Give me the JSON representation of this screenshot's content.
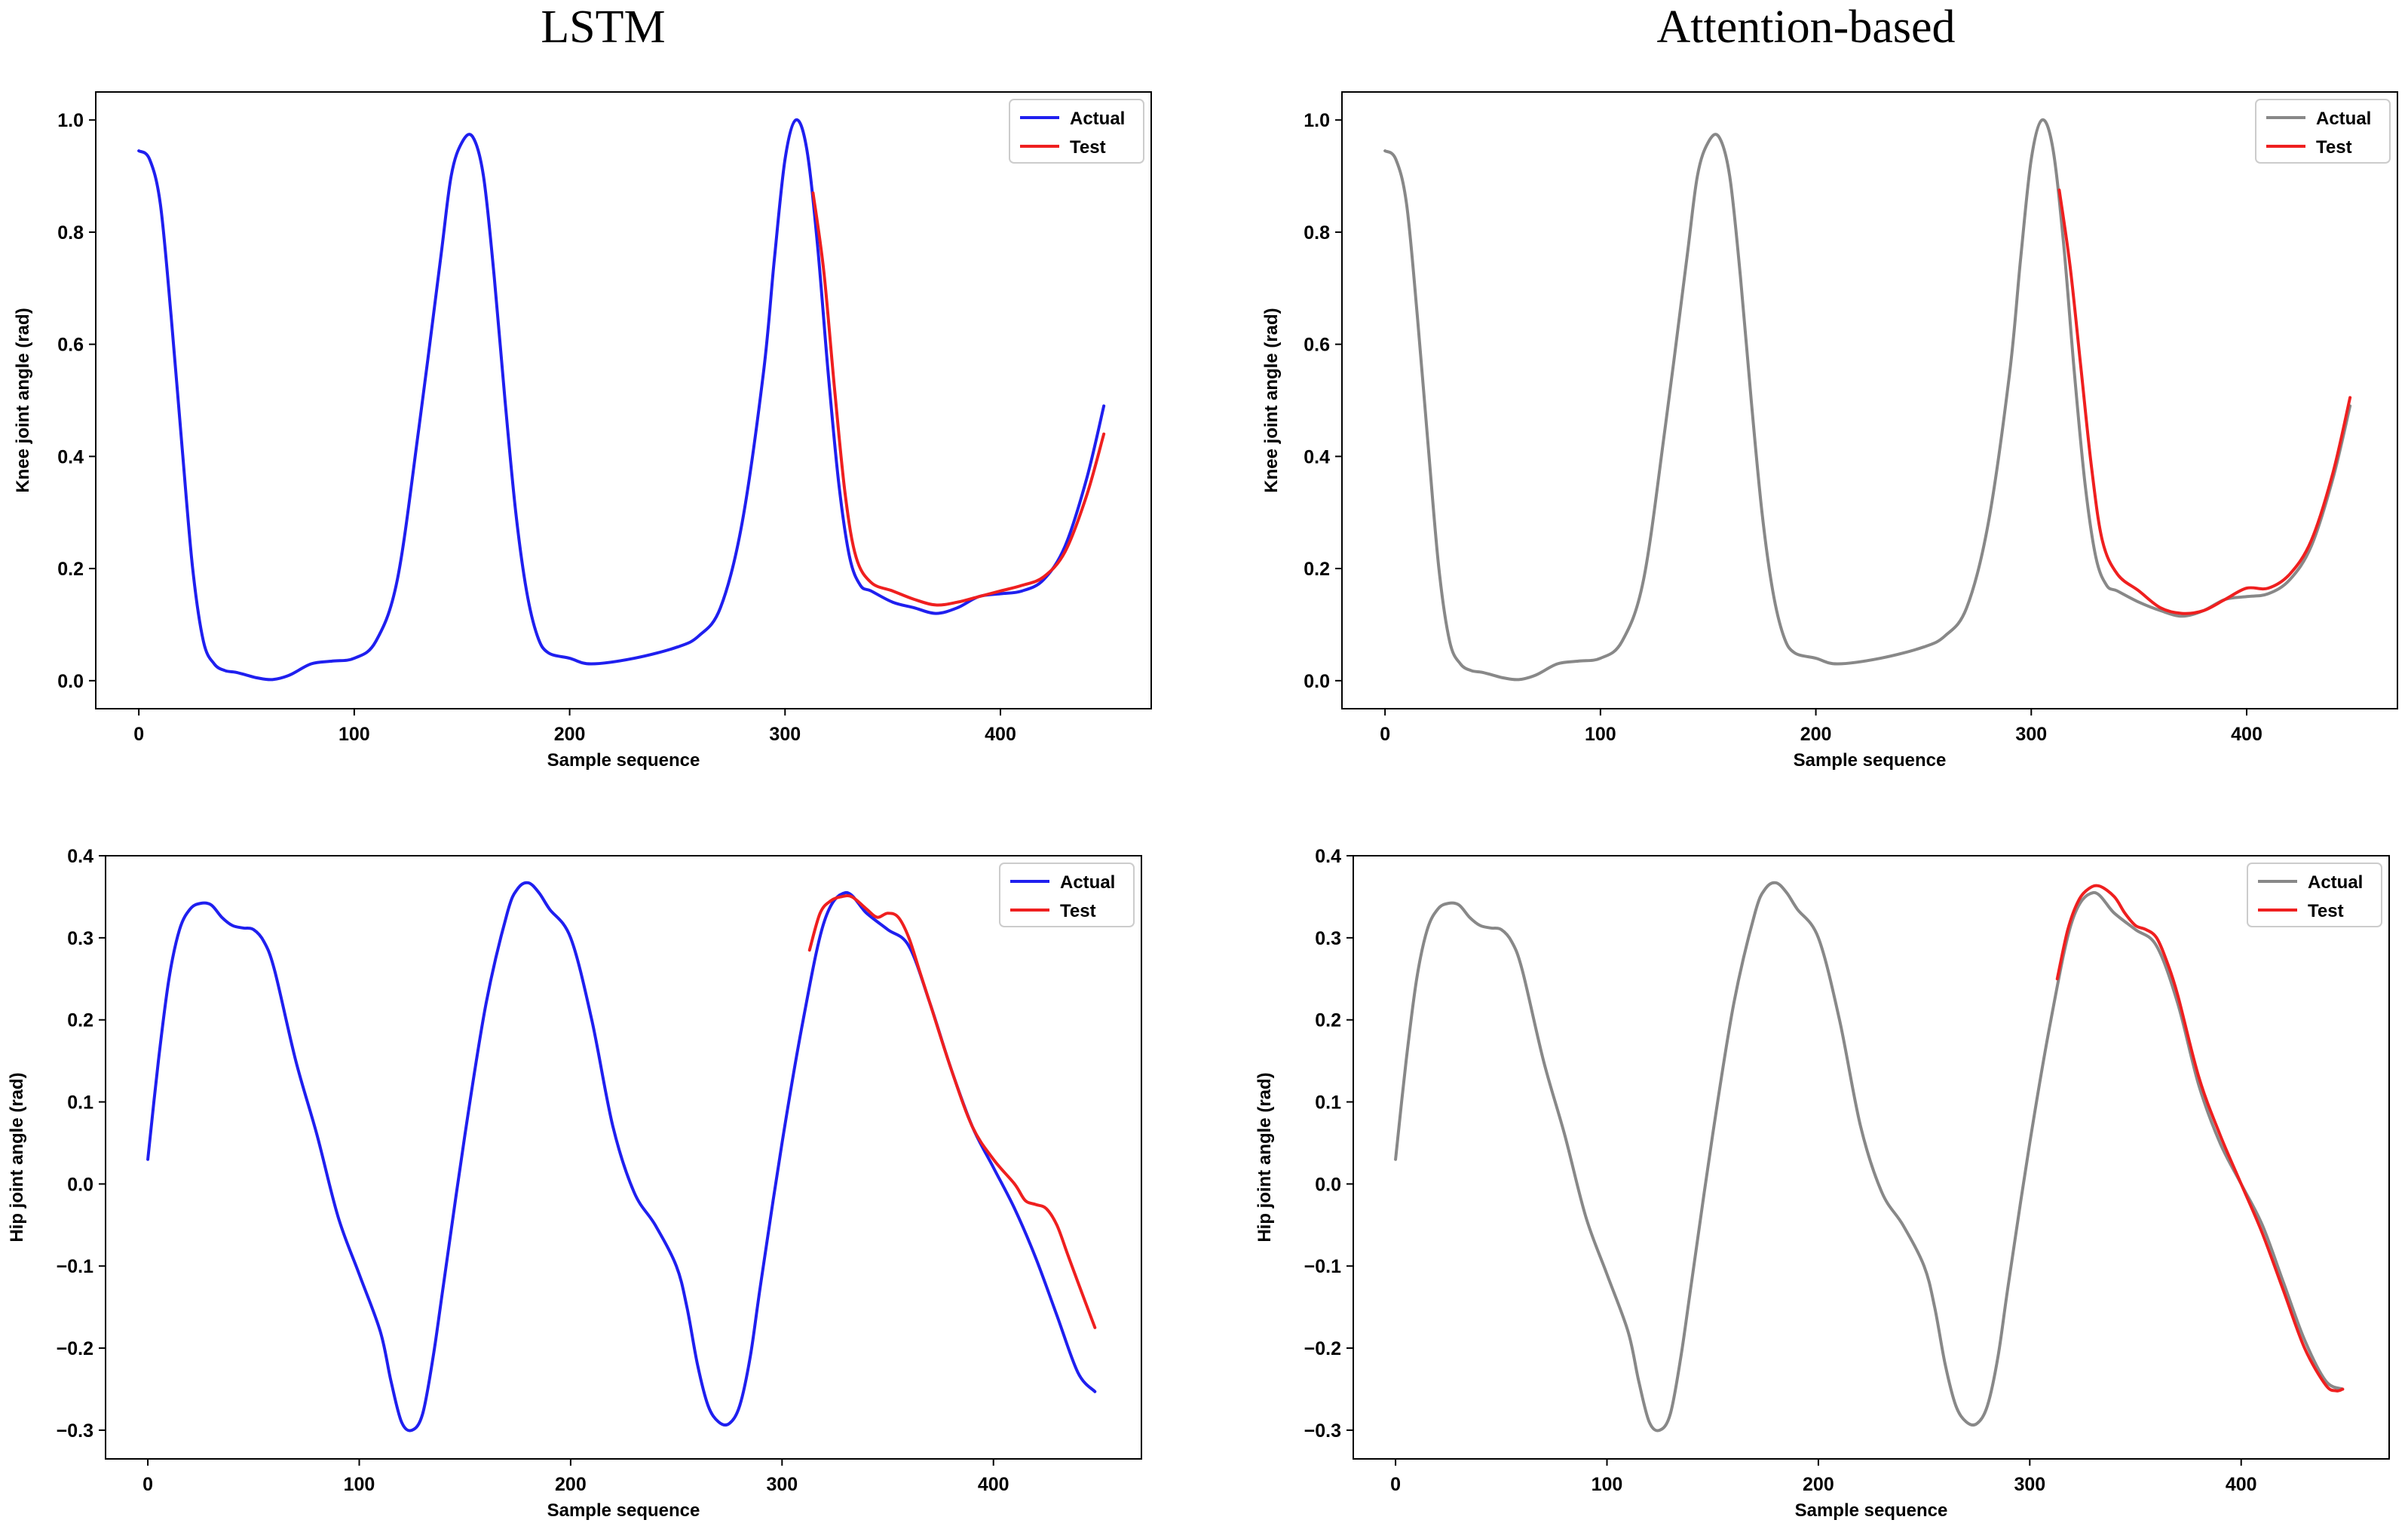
{
  "column_titles": {
    "left": "LSTM",
    "right": "Attention-based"
  },
  "colors": {
    "lstm_actual": "#1f1fef",
    "attention_actual": "#888888",
    "test": "#ef1f1f"
  },
  "chart_data": [
    {
      "id": "lstm-knee",
      "type": "line",
      "title": "",
      "column": "LSTM",
      "xlabel": "Sample sequence",
      "ylabel": "Knee joint angle (rad)",
      "xlim": [
        -20,
        470
      ],
      "ylim": [
        -0.05,
        1.05
      ],
      "xticks": [
        0,
        100,
        200,
        300,
        400
      ],
      "yticks": [
        0.0,
        0.2,
        0.4,
        0.6,
        0.8,
        1.0
      ],
      "ytick_labels": [
        "0.0",
        "0.2",
        "0.4",
        "0.6",
        "0.8",
        "1.0"
      ],
      "legend": {
        "placement": "top-right",
        "entries": [
          "Actual",
          "Test"
        ]
      },
      "series": [
        {
          "name": "Actual",
          "color": "#1f1fef",
          "x": [
            0,
            5,
            10,
            15,
            20,
            25,
            30,
            35,
            40,
            45,
            50,
            55,
            62,
            70,
            80,
            90,
            100,
            110,
            120,
            130,
            140,
            145,
            150,
            155,
            160,
            165,
            170,
            175,
            180,
            185,
            190,
            200,
            210,
            230,
            250,
            260,
            270,
            280,
            290,
            295,
            300,
            305,
            310,
            315,
            320,
            325,
            330,
            335,
            340,
            350,
            360,
            370,
            380,
            390,
            400,
            410,
            420,
            430,
            440,
            448
          ],
          "y": [
            0.945,
            0.93,
            0.85,
            0.65,
            0.42,
            0.2,
            0.07,
            0.03,
            0.018,
            0.015,
            0.01,
            0.005,
            0.002,
            0.01,
            0.03,
            0.035,
            0.04,
            0.07,
            0.18,
            0.45,
            0.75,
            0.9,
            0.96,
            0.97,
            0.9,
            0.72,
            0.5,
            0.3,
            0.16,
            0.08,
            0.05,
            0.04,
            0.03,
            0.04,
            0.06,
            0.08,
            0.13,
            0.28,
            0.55,
            0.75,
            0.93,
            1.0,
            0.95,
            0.78,
            0.55,
            0.35,
            0.22,
            0.17,
            0.16,
            0.14,
            0.13,
            0.12,
            0.13,
            0.15,
            0.155,
            0.16,
            0.18,
            0.24,
            0.36,
            0.49
          ]
        },
        {
          "name": "Test",
          "color": "#ef1f1f",
          "x": [
            313,
            318,
            323,
            328,
            333,
            340,
            350,
            360,
            370,
            380,
            390,
            400,
            410,
            420,
            430,
            440,
            448
          ],
          "y": [
            0.87,
            0.73,
            0.52,
            0.33,
            0.22,
            0.175,
            0.16,
            0.145,
            0.135,
            0.14,
            0.15,
            0.16,
            0.17,
            0.185,
            0.23,
            0.33,
            0.44
          ]
        }
      ]
    },
    {
      "id": "attention-knee",
      "type": "line",
      "title": "",
      "column": "Attention-based",
      "xlabel": "Sample sequence",
      "ylabel": "Knee joint angle (rad)",
      "xlim": [
        -20,
        470
      ],
      "ylim": [
        -0.05,
        1.05
      ],
      "xticks": [
        0,
        100,
        200,
        300,
        400
      ],
      "yticks": [
        0.0,
        0.2,
        0.4,
        0.6,
        0.8,
        1.0
      ],
      "ytick_labels": [
        "0.0",
        "0.2",
        "0.4",
        "0.6",
        "0.8",
        "1.0"
      ],
      "legend": {
        "placement": "top-right",
        "entries": [
          "Actual",
          "Test"
        ]
      },
      "series": [
        {
          "name": "Actual",
          "color": "#888888",
          "x": [
            0,
            5,
            10,
            15,
            20,
            25,
            30,
            35,
            40,
            45,
            50,
            55,
            62,
            70,
            80,
            90,
            100,
            110,
            120,
            130,
            140,
            145,
            150,
            155,
            160,
            165,
            170,
            175,
            180,
            185,
            190,
            200,
            210,
            230,
            250,
            260,
            270,
            280,
            290,
            295,
            300,
            305,
            310,
            315,
            320,
            325,
            330,
            335,
            340,
            350,
            360,
            370,
            380,
            390,
            400,
            410,
            420,
            430,
            440,
            448
          ],
          "y": [
            0.945,
            0.93,
            0.85,
            0.65,
            0.42,
            0.2,
            0.07,
            0.03,
            0.018,
            0.015,
            0.01,
            0.005,
            0.002,
            0.01,
            0.03,
            0.035,
            0.04,
            0.07,
            0.18,
            0.45,
            0.75,
            0.9,
            0.96,
            0.97,
            0.9,
            0.72,
            0.5,
            0.3,
            0.16,
            0.08,
            0.05,
            0.04,
            0.03,
            0.04,
            0.06,
            0.08,
            0.13,
            0.28,
            0.55,
            0.75,
            0.93,
            1.0,
            0.95,
            0.78,
            0.55,
            0.35,
            0.22,
            0.17,
            0.16,
            0.14,
            0.125,
            0.115,
            0.125,
            0.145,
            0.15,
            0.155,
            0.18,
            0.24,
            0.36,
            0.49
          ]
        },
        {
          "name": "Test",
          "color": "#ef1f1f",
          "x": [
            313,
            318,
            323,
            328,
            333,
            340,
            350,
            360,
            370,
            380,
            390,
            400,
            410,
            420,
            430,
            440,
            448
          ],
          "y": [
            0.875,
            0.74,
            0.56,
            0.38,
            0.25,
            0.19,
            0.16,
            0.13,
            0.12,
            0.125,
            0.145,
            0.165,
            0.165,
            0.19,
            0.25,
            0.37,
            0.505
          ]
        }
      ]
    },
    {
      "id": "lstm-hip",
      "type": "line",
      "title": "",
      "column": "LSTM",
      "xlabel": "Sample sequence",
      "ylabel": "Hip joint angle (rad)",
      "xlim": [
        -20,
        470
      ],
      "ylim": [
        -0.335,
        0.4
      ],
      "xticks": [
        0,
        100,
        200,
        300,
        400
      ],
      "yticks": [
        -0.3,
        -0.2,
        -0.1,
        0.0,
        0.1,
        0.2,
        0.3,
        0.4
      ],
      "ytick_labels": [
        "−0.3",
        "−0.2",
        "−0.1",
        "0.0",
        "0.1",
        "0.2",
        "0.3",
        "0.4"
      ],
      "legend": {
        "placement": "top-right",
        "entries": [
          "Actual",
          "Test"
        ]
      },
      "series": [
        {
          "name": "Actual",
          "color": "#1f1fef",
          "x": [
            0,
            5,
            10,
            15,
            20,
            25,
            30,
            35,
            40,
            45,
            50,
            55,
            60,
            70,
            80,
            90,
            100,
            110,
            115,
            120,
            125,
            130,
            135,
            140,
            150,
            160,
            170,
            175,
            180,
            185,
            190,
            200,
            210,
            220,
            230,
            240,
            250,
            255,
            260,
            265,
            270,
            275,
            280,
            285,
            290,
            300,
            310,
            320,
            330,
            340,
            350,
            360,
            370,
            380,
            390,
            400,
            410,
            420,
            430,
            440,
            448
          ],
          "y": [
            0.03,
            0.15,
            0.25,
            0.31,
            0.335,
            0.342,
            0.34,
            0.325,
            0.315,
            0.312,
            0.31,
            0.295,
            0.26,
            0.15,
            0.06,
            -0.04,
            -0.11,
            -0.18,
            -0.24,
            -0.29,
            -0.3,
            -0.28,
            -0.21,
            -0.12,
            0.06,
            0.22,
            0.33,
            0.36,
            0.367,
            0.355,
            0.335,
            0.3,
            0.2,
            0.07,
            -0.01,
            -0.05,
            -0.1,
            -0.15,
            -0.22,
            -0.27,
            -0.29,
            -0.292,
            -0.27,
            -0.21,
            -0.12,
            0.05,
            0.2,
            0.32,
            0.355,
            0.33,
            0.31,
            0.29,
            0.22,
            0.14,
            0.07,
            0.02,
            -0.03,
            -0.09,
            -0.16,
            -0.23,
            -0.253
          ]
        },
        {
          "name": "Test",
          "color": "#ef1f1f",
          "x": [
            313,
            318,
            323,
            328,
            333,
            340,
            345,
            350,
            355,
            360,
            365,
            370,
            380,
            390,
            400,
            410,
            415,
            420,
            425,
            430,
            435,
            440,
            448
          ],
          "y": [
            0.285,
            0.33,
            0.345,
            0.35,
            0.35,
            0.335,
            0.325,
            0.33,
            0.325,
            0.3,
            0.26,
            0.22,
            0.14,
            0.07,
            0.03,
            0.0,
            -0.02,
            -0.025,
            -0.03,
            -0.05,
            -0.085,
            -0.12,
            -0.175
          ]
        }
      ]
    },
    {
      "id": "attention-hip",
      "type": "line",
      "title": "",
      "column": "Attention-based",
      "xlabel": "Sample sequence",
      "ylabel": "Hip joint angle (rad)",
      "xlim": [
        -20,
        470
      ],
      "ylim": [
        -0.335,
        0.4
      ],
      "xticks": [
        0,
        100,
        200,
        300,
        400
      ],
      "yticks": [
        -0.3,
        -0.2,
        -0.1,
        0.0,
        0.1,
        0.2,
        0.3,
        0.4
      ],
      "ytick_labels": [
        "−0.3",
        "−0.2",
        "−0.1",
        "0.0",
        "0.1",
        "0.2",
        "0.3",
        "0.4"
      ],
      "legend": {
        "placement": "top-right",
        "entries": [
          "Actual",
          "Test"
        ]
      },
      "series": [
        {
          "name": "Actual",
          "color": "#888888",
          "x": [
            0,
            5,
            10,
            15,
            20,
            25,
            30,
            35,
            40,
            45,
            50,
            55,
            60,
            70,
            80,
            90,
            100,
            110,
            115,
            120,
            125,
            130,
            135,
            140,
            150,
            160,
            170,
            175,
            180,
            185,
            190,
            200,
            210,
            220,
            230,
            240,
            250,
            255,
            260,
            265,
            270,
            275,
            280,
            285,
            290,
            300,
            310,
            320,
            330,
            340,
            350,
            360,
            370,
            380,
            390,
            400,
            410,
            420,
            430,
            440,
            448
          ],
          "y": [
            0.03,
            0.15,
            0.25,
            0.31,
            0.335,
            0.342,
            0.34,
            0.325,
            0.315,
            0.312,
            0.31,
            0.295,
            0.26,
            0.15,
            0.06,
            -0.04,
            -0.11,
            -0.18,
            -0.24,
            -0.29,
            -0.3,
            -0.28,
            -0.21,
            -0.12,
            0.06,
            0.22,
            0.33,
            0.36,
            0.367,
            0.355,
            0.335,
            0.3,
            0.2,
            0.07,
            -0.01,
            -0.05,
            -0.1,
            -0.15,
            -0.22,
            -0.27,
            -0.29,
            -0.292,
            -0.27,
            -0.21,
            -0.12,
            0.05,
            0.2,
            0.32,
            0.355,
            0.33,
            0.31,
            0.29,
            0.22,
            0.12,
            0.05,
            0.0,
            -0.05,
            -0.12,
            -0.19,
            -0.24,
            -0.25
          ]
        },
        {
          "name": "Test",
          "color": "#ef1f1f",
          "x": [
            313,
            318,
            323,
            328,
            333,
            340,
            345,
            350,
            355,
            360,
            365,
            370,
            380,
            390,
            400,
            410,
            420,
            430,
            440,
            445,
            448
          ],
          "y": [
            0.25,
            0.31,
            0.345,
            0.36,
            0.363,
            0.35,
            0.33,
            0.315,
            0.31,
            0.3,
            0.27,
            0.23,
            0.13,
            0.06,
            0.0,
            -0.06,
            -0.13,
            -0.2,
            -0.245,
            -0.252,
            -0.25
          ]
        }
      ]
    }
  ]
}
